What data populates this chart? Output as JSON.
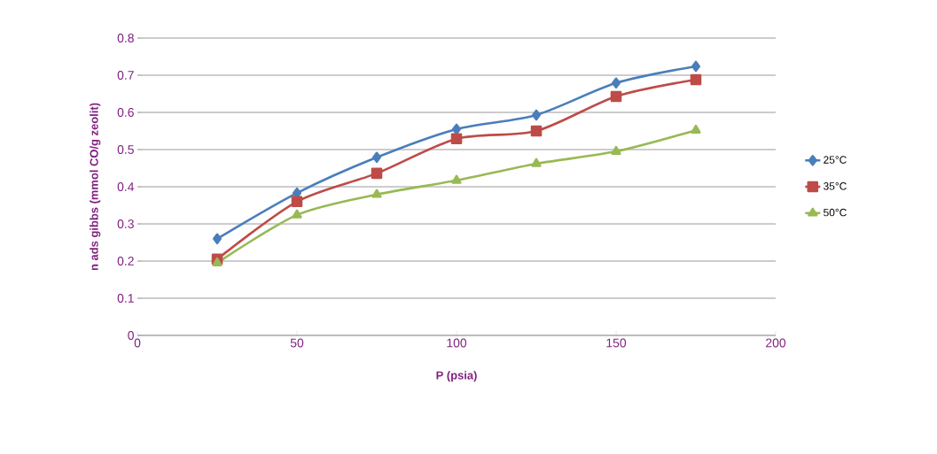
{
  "chart_data": {
    "type": "line",
    "xlabel": "P (psia)",
    "ylabel": "n ads gibbs (mmol CO/g zeolit)",
    "x": [
      25,
      50,
      75,
      100,
      125,
      150,
      175
    ],
    "series": [
      {
        "name": "25°C",
        "color": "#4a7ebb",
        "marker": "diamond",
        "values": [
          0.26,
          0.383,
          0.479,
          0.555,
          0.593,
          0.679,
          0.724
        ]
      },
      {
        "name": "35°C",
        "color": "#be4b48",
        "marker": "square",
        "values": [
          0.205,
          0.36,
          0.436,
          0.529,
          0.55,
          0.643,
          0.688
        ]
      },
      {
        "name": "50°C",
        "color": "#98b954",
        "marker": "triangle",
        "values": [
          0.195,
          0.324,
          0.379,
          0.417,
          0.462,
          0.495,
          0.552
        ]
      }
    ],
    "xlim": [
      0,
      200
    ],
    "xticks": [
      0,
      50,
      100,
      150,
      200
    ],
    "ylim": [
      0,
      0.8
    ],
    "yticks": [
      0,
      0.1,
      0.2,
      0.3,
      0.4,
      0.5,
      0.6,
      0.7,
      0.8
    ],
    "grid": "y",
    "legend": "right",
    "line_style": "solid"
  }
}
